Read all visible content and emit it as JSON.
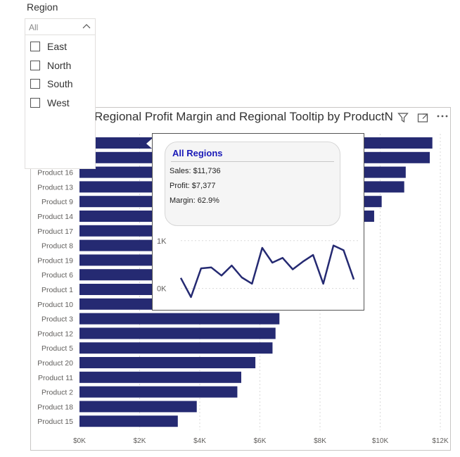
{
  "slicer": {
    "title": "Region",
    "selected": "All",
    "items": [
      {
        "label": "East",
        "checked": false
      },
      {
        "label": "North",
        "checked": false
      },
      {
        "label": "South",
        "checked": false
      },
      {
        "label": "West",
        "checked": false
      }
    ]
  },
  "visual": {
    "title": "Regional Profit Margin and Regional Tooltip by ProductN",
    "icons": [
      "filter-icon",
      "focus-mode-icon",
      "more-options-icon"
    ]
  },
  "chart_data": [
    {
      "type": "bar",
      "orientation": "horizontal",
      "title": "Regional Profit Margin and Regional Tooltip by ProductN",
      "categories": [
        "",
        "",
        "Product 16",
        "Product 13",
        "Product 9",
        "Product 14",
        "Product 17",
        "Product 8",
        "Product 19",
        "Product 6",
        "Product 1",
        "Product 10",
        "Product 3",
        "Product 12",
        "Product 5",
        "Product 20",
        "Product 11",
        "Product 2",
        "Product 18",
        "Product 15"
      ],
      "values": [
        11736,
        11650,
        10850,
        10800,
        10050,
        9800,
        9300,
        9100,
        8800,
        8600,
        8300,
        7900,
        6650,
        6520,
        6420,
        5850,
        5380,
        5250,
        3900,
        3270
      ],
      "xlim": [
        0,
        12000
      ],
      "xticks": [
        0,
        2000,
        4000,
        6000,
        8000,
        10000,
        12000
      ],
      "xtick_labels": [
        "$0K",
        "$2K",
        "$4K",
        "$6K",
        "$8K",
        "$10K",
        "$12K"
      ],
      "grid": true,
      "color": "#252a72"
    },
    {
      "type": "line",
      "values": [
        220,
        -180,
        420,
        440,
        270,
        480,
        230,
        100,
        850,
        540,
        640,
        400,
        560,
        700,
        100,
        900,
        800,
        190
      ],
      "ylim": [
        -300,
        1100
      ],
      "yticks": [
        0,
        1000
      ],
      "ytick_labels": [
        "0K",
        "1K"
      ],
      "color": "#252a72"
    }
  ],
  "tooltip": {
    "heading": "All Regions",
    "sales": "Sales: $11,736",
    "profit": "Profit: $7,377",
    "margin": "Margin: 62.9%"
  }
}
